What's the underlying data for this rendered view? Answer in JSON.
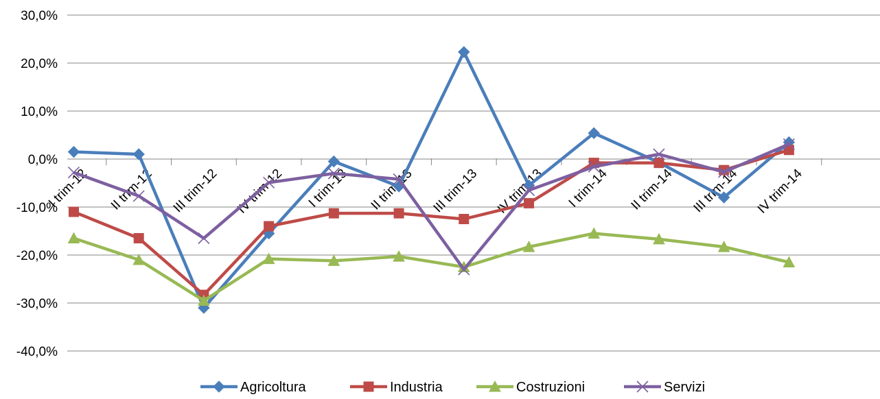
{
  "chart_data": {
    "type": "line",
    "categories": [
      "I trim-12",
      "II trim-12",
      "III trim-12",
      "IV trim-12",
      "I trim-13",
      "II trim-13",
      "III trim-13",
      "IV trim-13",
      "I trim-14",
      "II trim-14",
      "III trim-14",
      "IV trim-14"
    ],
    "ylim": [
      -40,
      30
    ],
    "yticks": [
      30,
      20,
      10,
      0,
      -10,
      -20,
      -30,
      -40
    ],
    "ytick_labels": [
      "30,0%",
      "20,0%",
      "10,0%",
      "0,0%",
      "-10,0%",
      "-20,0%",
      "-30,0%",
      "-40,0%"
    ],
    "grid": true,
    "legend_position": "bottom",
    "series": [
      {
        "name": "Agricoltura",
        "color": "#4a7ebb",
        "marker": "diamond",
        "values": [
          1.5,
          1.0,
          -31.0,
          -15.5,
          -0.5,
          -5.7,
          22.3,
          -5.5,
          5.4,
          -0.7,
          -8.0,
          3.5
        ]
      },
      {
        "name": "Industria",
        "color": "#be4b48",
        "marker": "square",
        "values": [
          -11.0,
          -16.5,
          -28.3,
          -14.0,
          -11.3,
          -11.3,
          -12.5,
          -9.2,
          -0.8,
          -0.8,
          -2.3,
          1.9
        ]
      },
      {
        "name": "Costruzioni",
        "color": "#98b954",
        "marker": "triangle",
        "values": [
          -16.5,
          -21.0,
          -29.5,
          -20.8,
          -21.2,
          -20.3,
          -22.5,
          -18.3,
          -15.5,
          -16.7,
          -18.3,
          -21.5
        ]
      },
      {
        "name": "Servizi",
        "color": "#7d60a0",
        "marker": "x",
        "values": [
          -2.8,
          -7.7,
          -16.5,
          -4.9,
          -3.0,
          -4.2,
          -23.0,
          -6.5,
          -1.6,
          1.0,
          -2.7,
          3.1
        ]
      }
    ]
  }
}
